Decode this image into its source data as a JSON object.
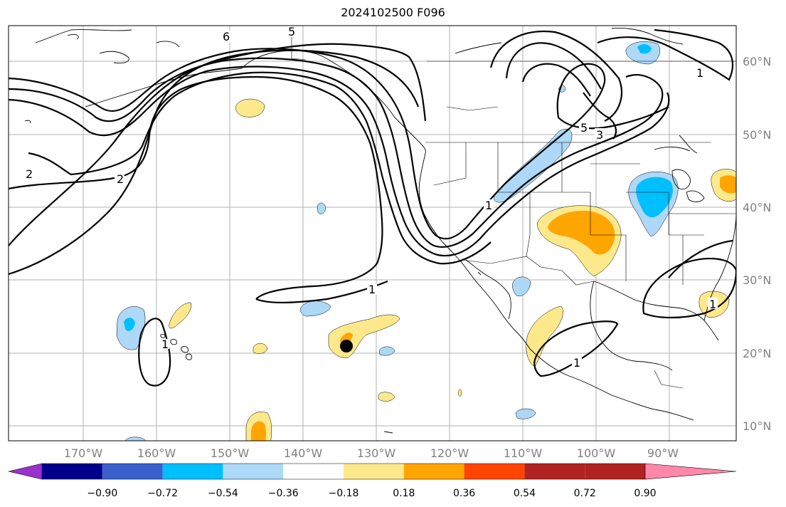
{
  "title": "2024102500 F096",
  "map": {
    "lon_labels": [
      "170°W",
      "160°W",
      "150°W",
      "140°W",
      "130°W",
      "120°W",
      "110°W",
      "100°W",
      "90°W"
    ],
    "lat_labels": [
      "60°N",
      "50°N",
      "40°N",
      "30°N",
      "20°N",
      "10°N"
    ],
    "contour_labels": [
      "6",
      "5",
      "2",
      "2",
      "1",
      "1",
      "1",
      "1",
      "1",
      "5",
      "3",
      "1"
    ],
    "marker": "storm-center-dot"
  },
  "colorbar": {
    "colors": [
      "#9932cc",
      "#00008b",
      "#3a5fcd",
      "#00bfff",
      "#add8f7",
      "#ffffff",
      "#fde98b",
      "#ffa500",
      "#ff4500",
      "#b22222",
      "#ff88aa"
    ],
    "tick_labels": [
      "−0.90",
      "−0.72",
      "−0.54",
      "−0.36",
      "−0.18",
      "0.18",
      "0.36",
      "0.54",
      "0.72",
      "0.90"
    ]
  }
}
